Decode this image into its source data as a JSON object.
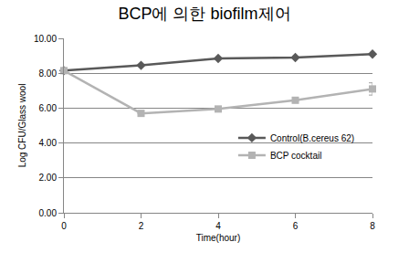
{
  "chart_data": {
    "type": "line",
    "title": "BCP에 의한 biofilm제어",
    "x_label": "Time(hour)",
    "y_label": "Log CFU/Glass wool",
    "x": [
      0,
      2,
      4,
      6,
      8
    ],
    "series": [
      {
        "name": "Control(B.cereus 62)",
        "color": "#595959",
        "marker": "diamond",
        "values": [
          8.15,
          8.45,
          8.85,
          8.9,
          9.1
        ]
      },
      {
        "name": "BCP cocktail",
        "color": "#b3b3b3",
        "marker": "square",
        "values": [
          8.15,
          5.7,
          5.95,
          6.45,
          7.1
        ],
        "errors": [
          0,
          0,
          0,
          0,
          0.35
        ]
      }
    ],
    "xlim": [
      0,
      8
    ],
    "xticks": [
      0,
      2,
      4,
      6,
      8
    ],
    "ylim": [
      0,
      10
    ],
    "yticks": [
      {
        "value": 0,
        "label": "0.00"
      },
      {
        "value": 2,
        "label": "2.00"
      },
      {
        "value": 4,
        "label": "4.00"
      },
      {
        "value": 6,
        "label": "6.00"
      },
      {
        "value": 8,
        "label": "8.00"
      },
      {
        "value": 10,
        "label": "10.00"
      }
    ],
    "grid": true,
    "legend": "right"
  }
}
